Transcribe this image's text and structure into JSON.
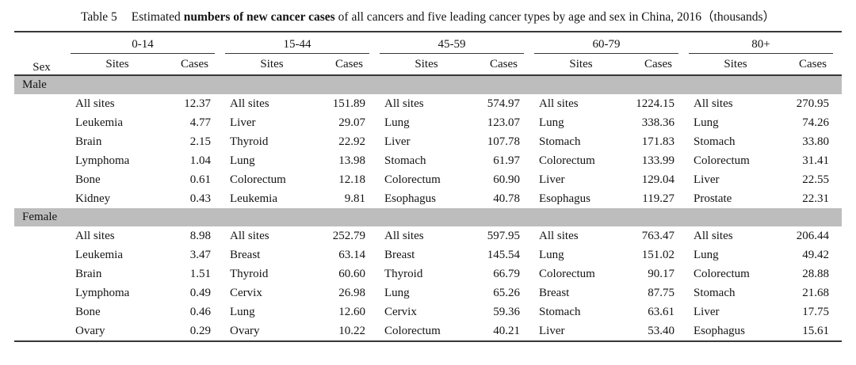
{
  "title": {
    "label": "Table 5",
    "lead": "Estimated",
    "bold": "numbers of new cancer cases",
    "rest": "of all cancers and five leading cancer types by age and sex in China, 2016（thousands）"
  },
  "table": {
    "sex_header": "Sex",
    "age_groups": [
      "0-14",
      "15-44",
      "45-59",
      "60-79",
      "80+"
    ],
    "subheaders": {
      "sites": "Sites",
      "cases": "Cases"
    },
    "sections": [
      {
        "sex": "Male",
        "rows": [
          [
            [
              "All sites",
              "12.37"
            ],
            [
              "All sites",
              "151.89"
            ],
            [
              "All sites",
              "574.97"
            ],
            [
              "All sites",
              "1224.15"
            ],
            [
              "All sites",
              "270.95"
            ]
          ],
          [
            [
              "Leukemia",
              "4.77"
            ],
            [
              "Liver",
              "29.07"
            ],
            [
              "Lung",
              "123.07"
            ],
            [
              "Lung",
              "338.36"
            ],
            [
              "Lung",
              "74.26"
            ]
          ],
          [
            [
              "Brain",
              "2.15"
            ],
            [
              "Thyroid",
              "22.92"
            ],
            [
              "Liver",
              "107.78"
            ],
            [
              "Stomach",
              "171.83"
            ],
            [
              "Stomach",
              "33.80"
            ]
          ],
          [
            [
              "Lymphoma",
              "1.04"
            ],
            [
              "Lung",
              "13.98"
            ],
            [
              "Stomach",
              "61.97"
            ],
            [
              "Colorectum",
              "133.99"
            ],
            [
              "Colorectum",
              "31.41"
            ]
          ],
          [
            [
              "Bone",
              "0.61"
            ],
            [
              "Colorectum",
              "12.18"
            ],
            [
              "Colorectum",
              "60.90"
            ],
            [
              "Liver",
              "129.04"
            ],
            [
              "Liver",
              "22.55"
            ]
          ],
          [
            [
              "Kidney",
              "0.43"
            ],
            [
              "Leukemia",
              "9.81"
            ],
            [
              "Esophagus",
              "40.78"
            ],
            [
              "Esophagus",
              "119.27"
            ],
            [
              "Prostate",
              "22.31"
            ]
          ]
        ]
      },
      {
        "sex": "Female",
        "rows": [
          [
            [
              "All sites",
              "8.98"
            ],
            [
              "All sites",
              "252.79"
            ],
            [
              "All sites",
              "597.95"
            ],
            [
              "All sites",
              "763.47"
            ],
            [
              "All sites",
              "206.44"
            ]
          ],
          [
            [
              "Leukemia",
              "3.47"
            ],
            [
              "Breast",
              "63.14"
            ],
            [
              "Breast",
              "145.54"
            ],
            [
              "Lung",
              "151.02"
            ],
            [
              "Lung",
              "49.42"
            ]
          ],
          [
            [
              "Brain",
              "1.51"
            ],
            [
              "Thyroid",
              "60.60"
            ],
            [
              "Thyroid",
              "66.79"
            ],
            [
              "Colorectum",
              "90.17"
            ],
            [
              "Colorectum",
              "28.88"
            ]
          ],
          [
            [
              "Lymphoma",
              "0.49"
            ],
            [
              "Cervix",
              "26.98"
            ],
            [
              "Lung",
              "65.26"
            ],
            [
              "Breast",
              "87.75"
            ],
            [
              "Stomach",
              "21.68"
            ]
          ],
          [
            [
              "Bone",
              "0.46"
            ],
            [
              "Lung",
              "12.60"
            ],
            [
              "Cervix",
              "59.36"
            ],
            [
              "Stomach",
              "63.61"
            ],
            [
              "Liver",
              "17.75"
            ]
          ],
          [
            [
              "Ovary",
              "0.29"
            ],
            [
              "Ovary",
              "10.22"
            ],
            [
              "Colorectum",
              "40.21"
            ],
            [
              "Liver",
              "53.40"
            ],
            [
              "Esophagus",
              "15.61"
            ]
          ]
        ]
      }
    ]
  },
  "colors": {
    "band": "#bdbdbd",
    "rule": "#383838",
    "text": "#141414"
  }
}
